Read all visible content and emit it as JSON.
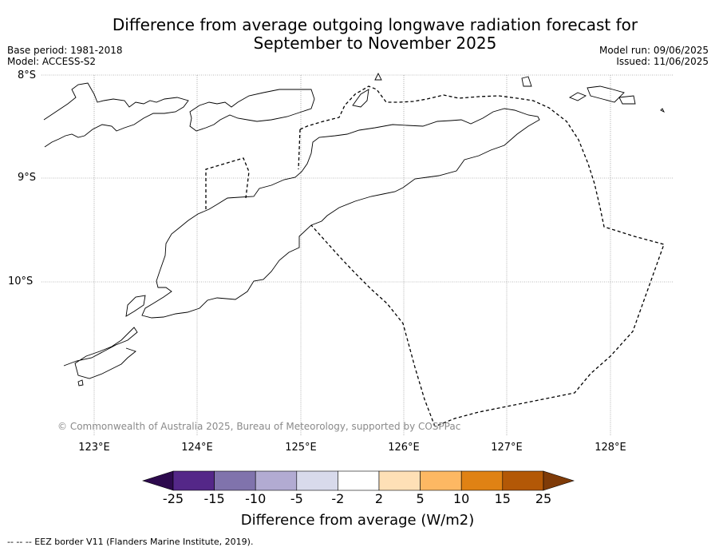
{
  "title_line1": "Difference from average outgoing longwave radiation forecast for",
  "title_line2": "September to November 2025",
  "meta_left": {
    "base_period": "Base period: 1981-2018",
    "model": "Model: ACCESS-S2"
  },
  "meta_right": {
    "model_run": "Model run: 09/06/2025",
    "issued": "Issued: 11/06/2025"
  },
  "y_labels": [
    "8°S",
    "9°S",
    "10°S"
  ],
  "x_labels": [
    "123°E",
    "124°E",
    "125°E",
    "126°E",
    "127°E",
    "128°E"
  ],
  "copyright": "© Commonwealth of Australia 2025, Bureau of Meteorology, supported by COSPPac",
  "colorbar": {
    "ticks": [
      "-25",
      "-15",
      "-10",
      "-5",
      "-2",
      "2",
      "5",
      "10",
      "15",
      "25"
    ],
    "colors": [
      "#2d0a4e",
      "#542788",
      "#8073ac",
      "#b2abd2",
      "#d8daeb",
      "#ffffff",
      "#fee0b6",
      "#fdb863",
      "#e08214",
      "#b35806",
      "#7f3b08"
    ],
    "label": "Difference from average (W/m2)"
  },
  "footer": "-- -- -- EEZ border V11 (Flanders Marine Institute, 2019)."
}
